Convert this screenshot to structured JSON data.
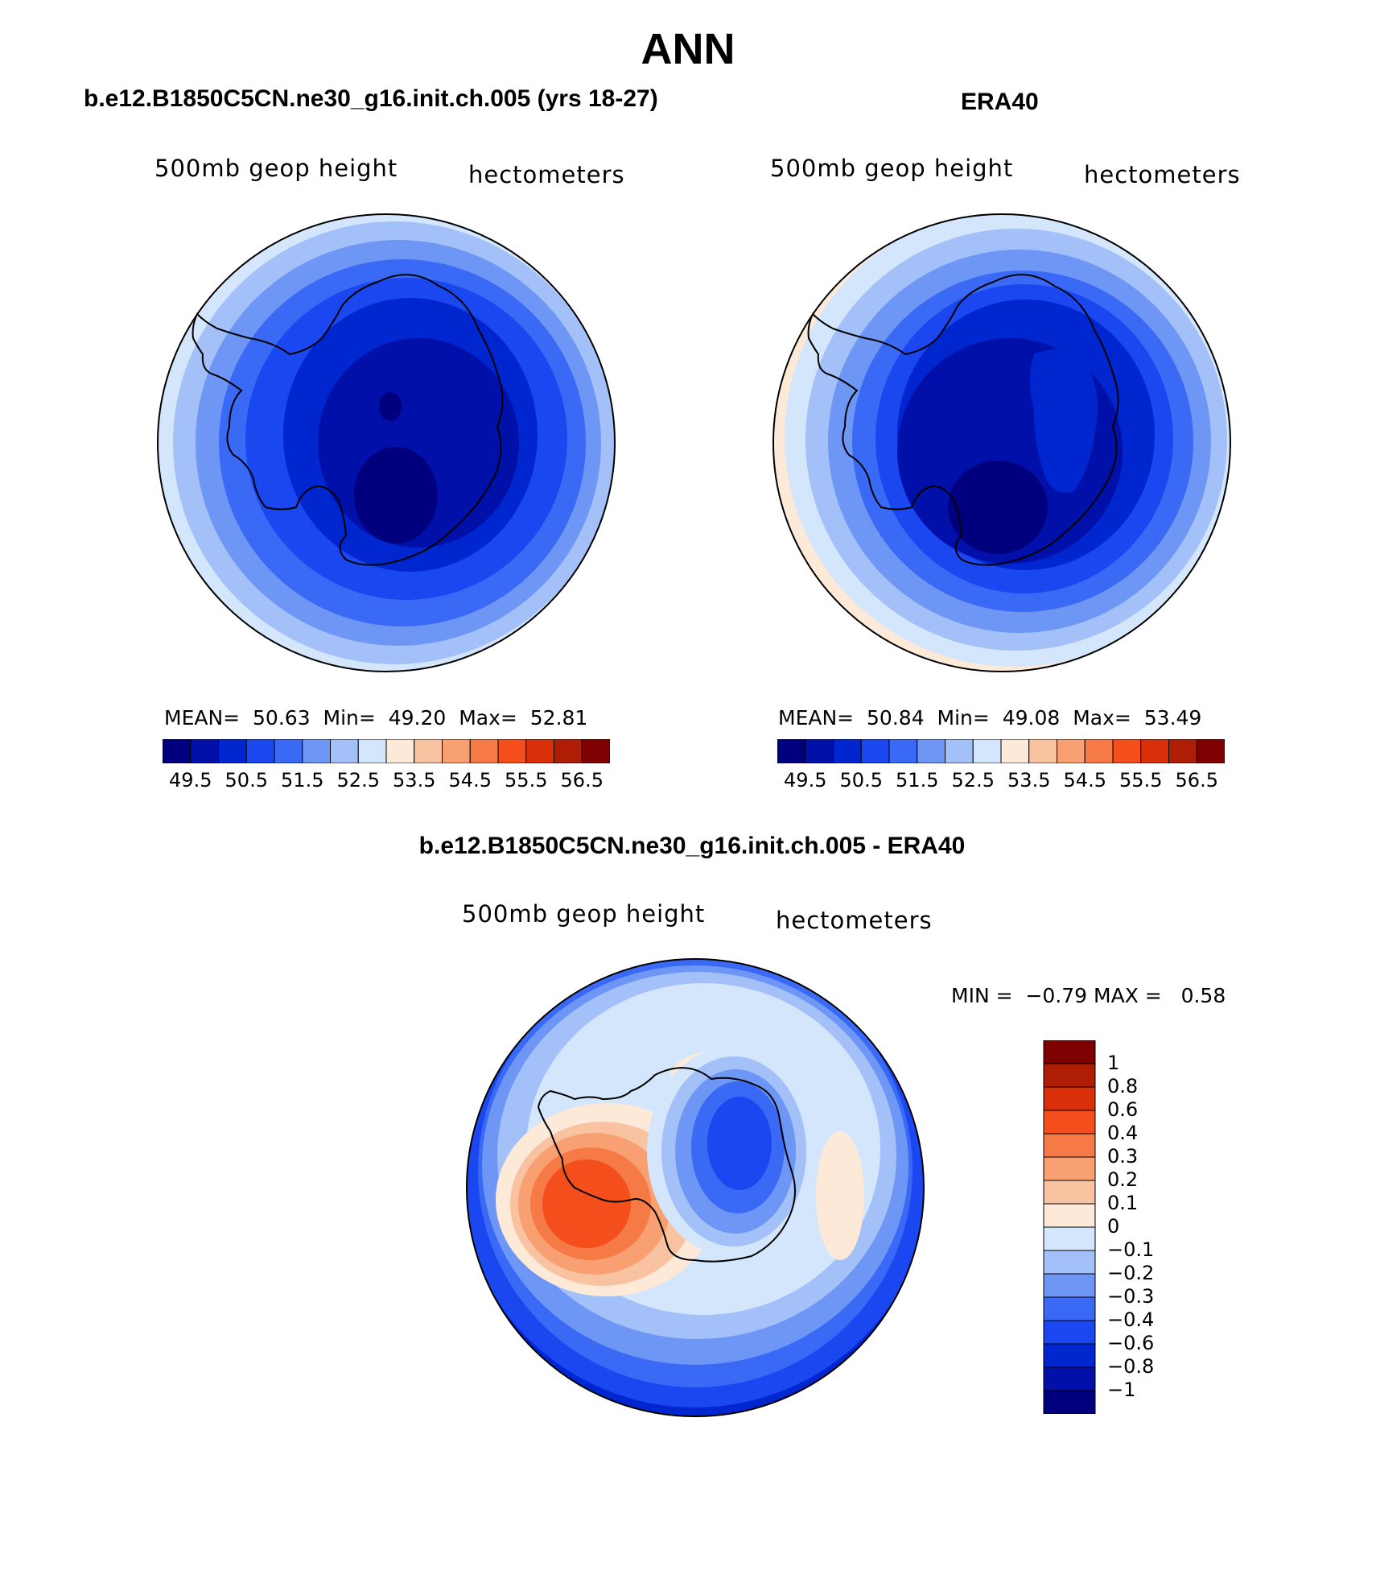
{
  "main_title": "ANN",
  "colors": {
    "main_palette": [
      "#00007f",
      "#0010a8",
      "#0026d0",
      "#1a47f0",
      "#3a6af5",
      "#6e96f5",
      "#a4c0f8",
      "#d4e6fb",
      "#fde9d8",
      "#f9c3a2",
      "#f8a072",
      "#f67a45",
      "#f44e1d",
      "#d9300a",
      "#b01d05",
      "#7f0000"
    ],
    "diff_palette": [
      "#00007f",
      "#0010a8",
      "#0026d0",
      "#1a47f0",
      "#3a6af5",
      "#6e96f5",
      "#a4c0f8",
      "#d4e6fb",
      "#fde9d8",
      "#f9c3a2",
      "#f8a072",
      "#f67a45",
      "#f44e1d",
      "#d9300a",
      "#b01d05",
      "#7f0000"
    ]
  },
  "panels": {
    "model": {
      "title": "b.e12.B1850C5CN.ne30_g16.init.ch.005 (yrs 18-27)",
      "variable": "500mb geop height",
      "units": "hectometers",
      "stats": {
        "mean_label": "MEAN=",
        "mean": "50.63",
        "min_label": "Min=",
        "min": "49.20",
        "max_label": "Max=",
        "max": "52.81"
      },
      "colorbar_ticks": [
        "49.5",
        "50.5",
        "51.5",
        "52.5",
        "53.5",
        "54.5",
        "55.5",
        "56.5"
      ]
    },
    "obs": {
      "title": "ERA40",
      "variable": "500mb geop height",
      "units": "hectometers",
      "stats": {
        "mean_label": "MEAN=",
        "mean": "50.84",
        "min_label": "Min=",
        "min": "49.08",
        "max_label": "Max=",
        "max": "53.49"
      },
      "colorbar_ticks": [
        "49.5",
        "50.5",
        "51.5",
        "52.5",
        "53.5",
        "54.5",
        "55.5",
        "56.5"
      ]
    },
    "diff": {
      "title": "b.e12.B1850C5CN.ne30_g16.init.ch.005 - ERA40",
      "variable": "500mb geop height",
      "units": "hectometers",
      "stats": {
        "min_label": "MIN =",
        "min": "−0.79",
        "max_label": "MAX =",
        "max": "0.58"
      },
      "colorbar_ticks": [
        "1",
        "0.8",
        "0.6",
        "0.4",
        "0.3",
        "0.2",
        "0.1",
        "0",
        "−0.1",
        "−0.2",
        "−0.3",
        "−0.4",
        "−0.6",
        "−0.8",
        "−1"
      ]
    }
  }
}
